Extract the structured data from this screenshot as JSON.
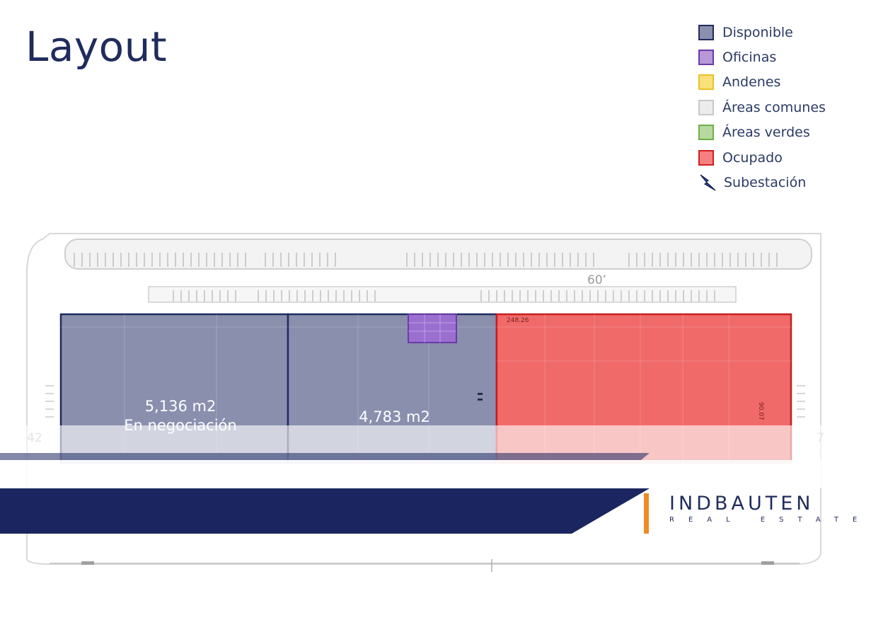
{
  "title": "Layout",
  "legend": [
    {
      "label": "Disponible",
      "fill": "#8a8fae",
      "border": "#1f2c5c"
    },
    {
      "label": "Oficinas",
      "fill": "#b898d8",
      "border": "#6a3aa8"
    },
    {
      "label": "Andenes",
      "fill": "#fbe07a",
      "border": "#e9c12a"
    },
    {
      "label": "Áreas comunes",
      "fill": "#ececec",
      "border": "#c8c8c8"
    },
    {
      "label": "Áreas verdes",
      "fill": "#b7d8a0",
      "border": "#6fae4a"
    },
    {
      "label": "Ocupado",
      "fill": "#f58080",
      "border": "#d02020"
    },
    {
      "label": "Subestación",
      "icon": "lightning-bolt-icon"
    }
  ],
  "plan": {
    "dimension_top": "60’",
    "dimension_left": "42",
    "dimension_right": "7",
    "dim_small_top": "248.26",
    "dim_small_side": "90.07",
    "units": [
      {
        "area": "5,136 m2",
        "status": "En negociación"
      },
      {
        "area": "4,783 m2",
        "status": ""
      }
    ]
  },
  "colors": {
    "navy": "#1b2660",
    "orange": "#f08a24",
    "available": "#8a8fae",
    "occupied": "#f06a6a"
  },
  "logo": {
    "name": "INDBAUTEN",
    "tagline": "REAL ESTATE"
  }
}
